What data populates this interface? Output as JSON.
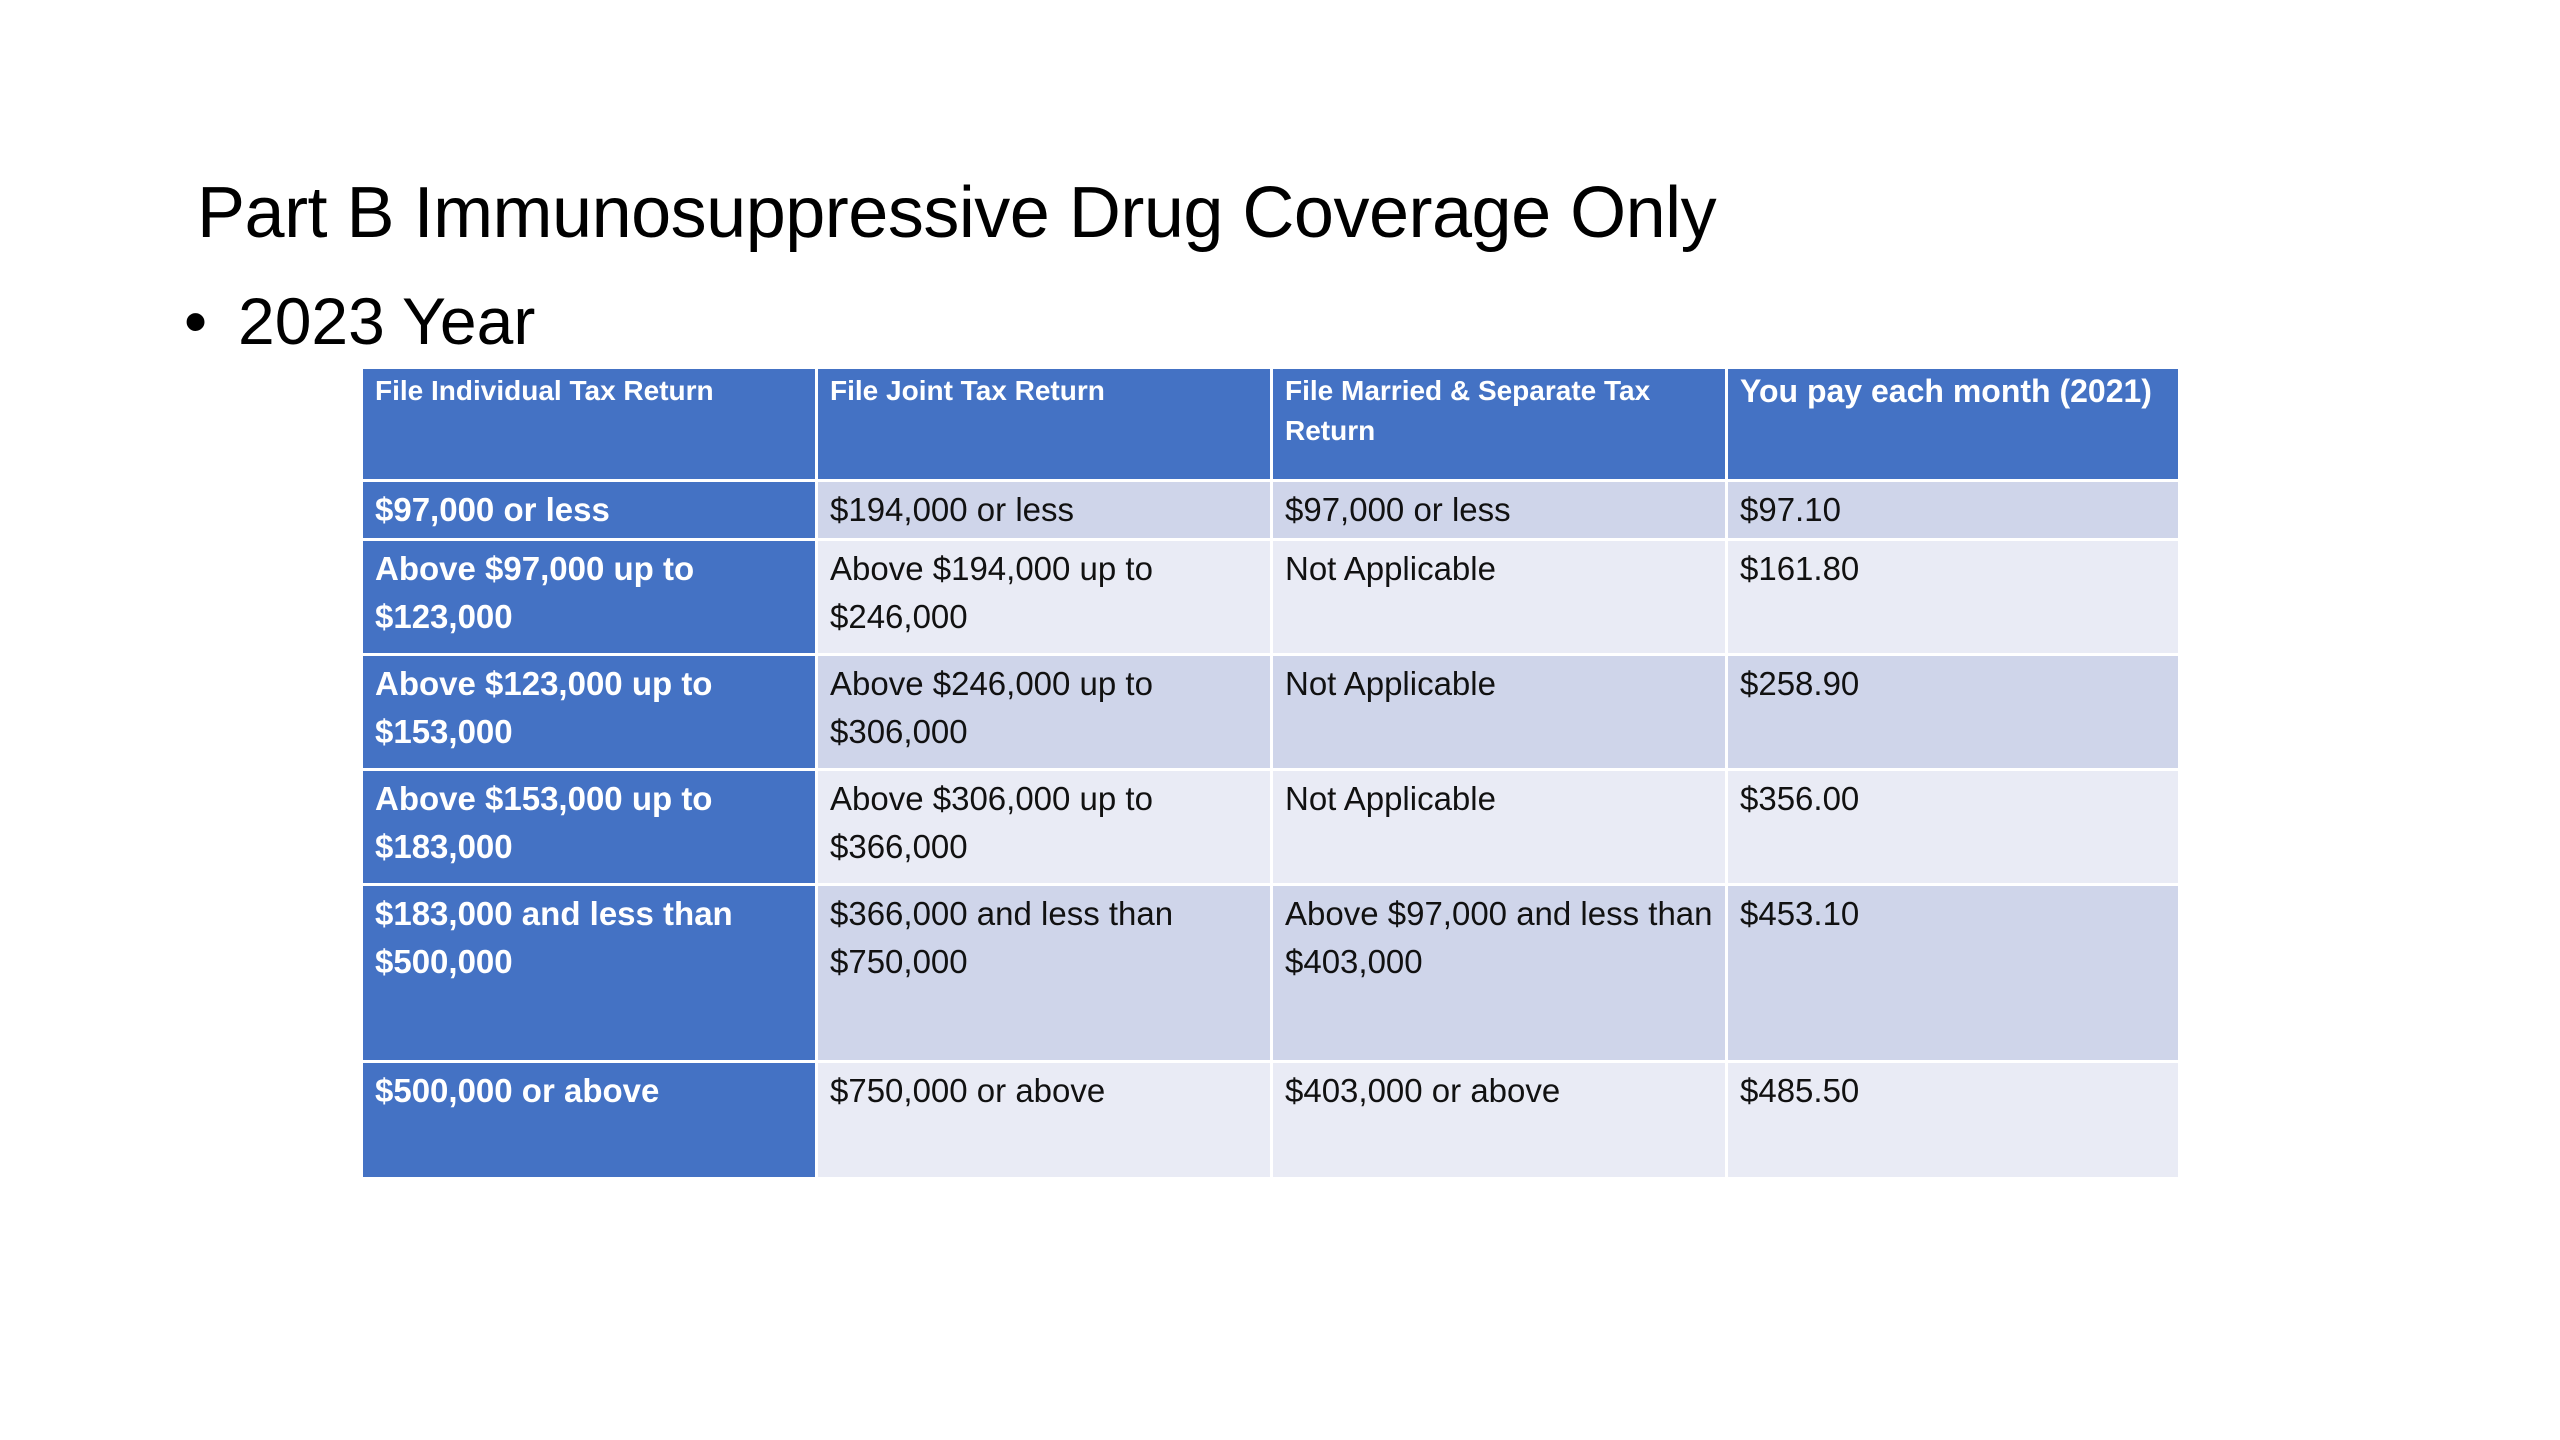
{
  "slide": {
    "title": "Part B Immunosuppressive Drug Coverage Only",
    "bullet_marker": "•",
    "bullet_text": "2023 Year"
  },
  "table": {
    "headers": [
      "File Individual Tax Return",
      "File Joint Tax Return",
      "File Married & Separate Tax Return",
      "You pay each month (2021)"
    ],
    "rows": [
      [
        "$97,000 or less",
        "$194,000 or less",
        "$97,000 or less",
        "$97.10"
      ],
      [
        "Above $97,000 up to $123,000",
        "Above $194,000 up to $246,000",
        "Not Applicable",
        "$161.80"
      ],
      [
        "Above $123,000 up to $153,000",
        "Above $246,000 up to $306,000",
        "Not Applicable",
        "$258.90"
      ],
      [
        "Above $153,000 up to $183,000",
        "Above $306,000 up to $366,000",
        "Not Applicable",
        "$356.00"
      ],
      [
        "$183,000 and less than $500,000",
        "$366,000 and less than $750,000",
        "Above $97,000 and less than $403,000",
        "$453.10"
      ],
      [
        "$500,000 or above",
        "$750,000 or above",
        "$403,000 or above",
        "$485.50"
      ]
    ]
  },
  "colors": {
    "header_fill": "#4472c4",
    "row_dark_fill": "#cfd5ea",
    "row_light_fill": "#e9ebf5",
    "header_text": "#ffffff",
    "body_text": "#111111"
  }
}
